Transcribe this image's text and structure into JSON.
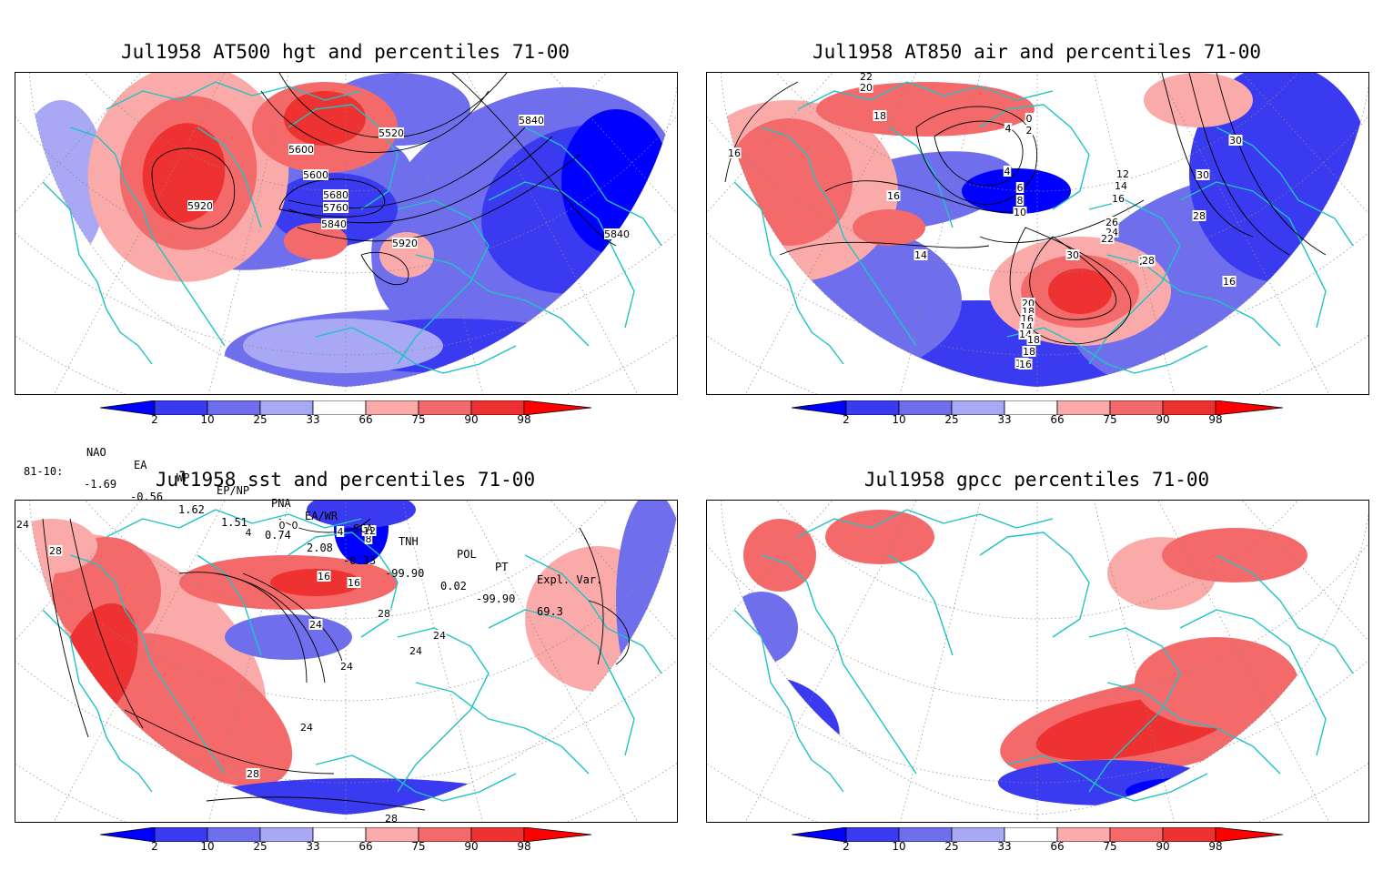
{
  "panels": {
    "top_left": {
      "title": "Jul1958 AT500 hgt and percentiles 71-00",
      "contour_labels": [
        "5920",
        "5600",
        "5520",
        "5840",
        "5600",
        "5680",
        "5760",
        "5840",
        "5920",
        "5840"
      ]
    },
    "top_right": {
      "title": "Jul1958 AT850 air and percentiles 71-00",
      "contour_labels": [
        "22",
        "20",
        "18",
        "16",
        "4",
        "0",
        "2",
        "4",
        "6",
        "8",
        "10",
        "16",
        "14",
        "12",
        "14",
        "16",
        "30",
        "30",
        "28",
        "26",
        "30",
        "28",
        "26",
        "24",
        "22",
        "20",
        "18",
        "16",
        "14",
        "14",
        "18",
        "18",
        "18",
        "16",
        "16"
      ]
    },
    "bottom_left": {
      "title": "Jul1958 sst and percentiles 71-00",
      "contour_labels": [
        "24",
        "28",
        "4",
        "0",
        "0",
        "4",
        "4",
        "8",
        "12",
        "8",
        "16",
        "16",
        "20",
        "24",
        "24",
        "24",
        "28",
        "28",
        "28",
        "24",
        "24"
      ]
    },
    "bottom_right": {
      "title": "Jul1958 gpcc percentiles 71-00",
      "contour_labels": []
    }
  },
  "colorbar": {
    "ticks": [
      "2",
      "10",
      "25",
      "33",
      "66",
      "75",
      "90",
      "98"
    ],
    "colors": {
      "below_2": "#0000ff",
      "p2_10": "#3a3af0",
      "p10_25": "#6f6fee",
      "p25_33": "#a8a8f4",
      "p33_66": "#ffffff",
      "p66_75": "#fbaaaa",
      "p75_90": "#f46a6a",
      "p90_98": "#ee3232",
      "above_98": "#ff0000"
    }
  },
  "indices": {
    "headers": [
      "NAO",
      "EA",
      "WP",
      "EP/NP",
      "PNA",
      "EA/WR",
      "SCA",
      "TNH",
      "POL",
      "PT",
      "Expl. Var."
    ],
    "row_label": "81-10:",
    "values": [
      "-1.69",
      "-0.56",
      "1.62",
      "1.51",
      "0.74",
      "2.08",
      "-0.33",
      "-99.90",
      "0.02",
      "-99.90",
      "69.3"
    ]
  },
  "map_colors": {
    "coastline": "#1fc3c3",
    "grid": "#888888",
    "contour": "#000000",
    "frame": "#000000"
  }
}
